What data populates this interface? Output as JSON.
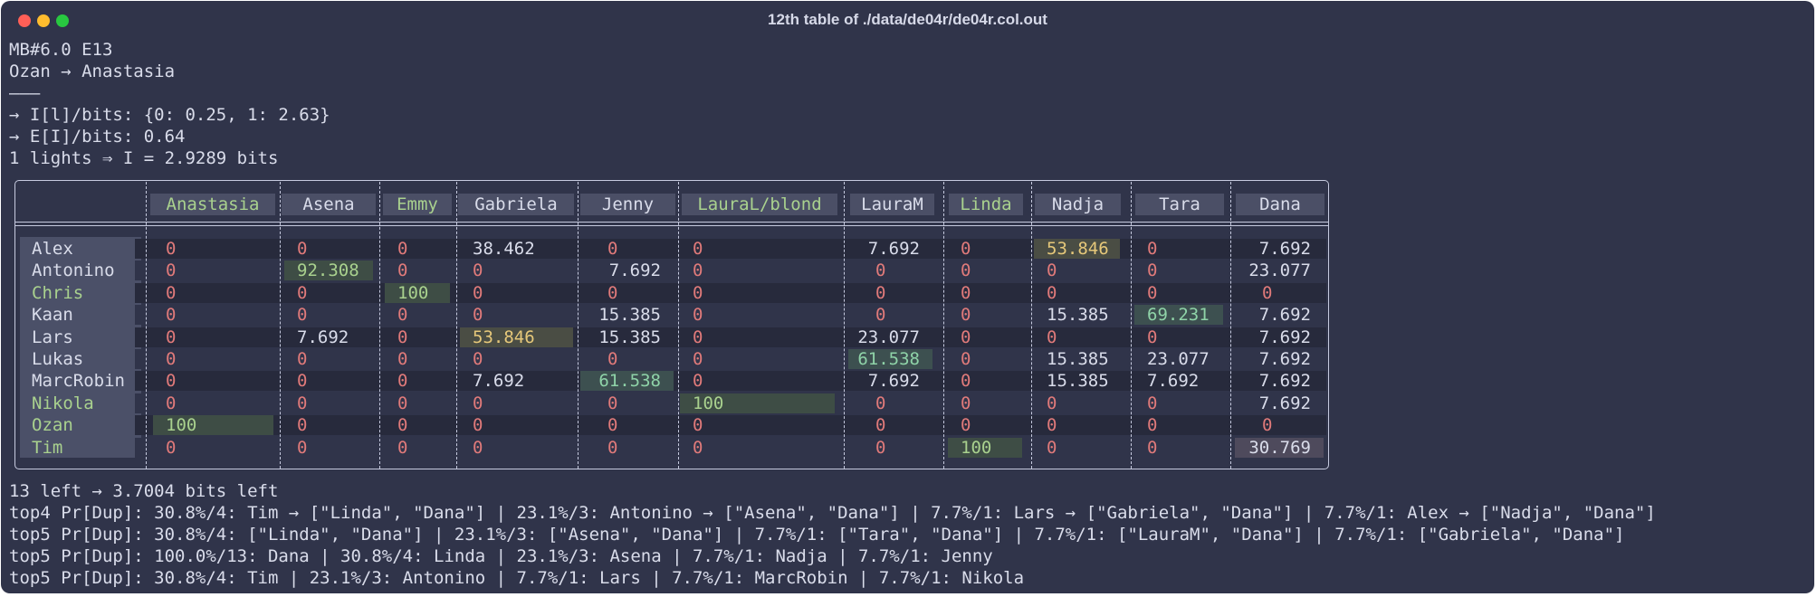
{
  "window": {
    "title": "12th table of ./data/de04r/de04r.col.out",
    "controls": {
      "close_color": "#ff5f57",
      "minimize_color": "#febc2e",
      "zoom_color": "#28c840"
    }
  },
  "header_lines": [
    "MB#6.0 E13",
    "Ozan → Anastasia",
    "———",
    "→ I[l]/bits: {0: 0.25, 1: 2.63}",
    "→ E[I]/bits: 0.64",
    "1 lights ⇒ I = 2.9289 bits"
  ],
  "table": {
    "columns": [
      {
        "label": "Anastasia",
        "color": "#a9d18e"
      },
      {
        "label": "Asena",
        "color": "#d9dcea"
      },
      {
        "label": "Emmy",
        "color": "#a9d18e"
      },
      {
        "label": "Gabriela",
        "color": "#d9dcea"
      },
      {
        "label": "Jenny",
        "color": "#d9dcea"
      },
      {
        "label": "LauraL/blond",
        "color": "#a9d18e"
      },
      {
        "label": "LauraM",
        "color": "#d9dcea"
      },
      {
        "label": "Linda",
        "color": "#a9d18e"
      },
      {
        "label": "Nadja",
        "color": "#d9dcea"
      },
      {
        "label": "Tara",
        "color": "#d9dcea"
      },
      {
        "label": "Dana",
        "color": "#d9dcea"
      }
    ],
    "rows": [
      {
        "name": "Alex",
        "name_color": "#d9dcea",
        "values": [
          "0",
          "0",
          "0",
          "38.462",
          "0",
          "0",
          "7.692",
          "0",
          "53.846",
          "0",
          "7.692"
        ]
      },
      {
        "name": "Antonino",
        "name_color": "#d9dcea",
        "values": [
          "0",
          "92.308",
          "0",
          "0",
          "7.692",
          "0",
          "0",
          "0",
          "0",
          "0",
          "23.077"
        ]
      },
      {
        "name": "Chris",
        "name_color": "#a9d18e",
        "values": [
          "0",
          "0",
          "100",
          "0",
          "0",
          "0",
          "0",
          "0",
          "0",
          "0",
          "0"
        ]
      },
      {
        "name": "Kaan",
        "name_color": "#d9dcea",
        "values": [
          "0",
          "0",
          "0",
          "0",
          "15.385",
          "0",
          "0",
          "0",
          "15.385",
          "69.231",
          "7.692"
        ]
      },
      {
        "name": "Lars",
        "name_color": "#d9dcea",
        "values": [
          "0",
          "7.692",
          "0",
          "53.846",
          "15.385",
          "0",
          "23.077",
          "0",
          "0",
          "0",
          "7.692"
        ]
      },
      {
        "name": "Lukas",
        "name_color": "#d9dcea",
        "values": [
          "0",
          "0",
          "0",
          "0",
          "0",
          "0",
          "61.538",
          "0",
          "15.385",
          "23.077",
          "7.692"
        ]
      },
      {
        "name": "MarcRobin",
        "name_color": "#d9dcea",
        "values": [
          "0",
          "0",
          "0",
          "7.692",
          "61.538",
          "0",
          "7.692",
          "0",
          "15.385",
          "7.692",
          "7.692"
        ]
      },
      {
        "name": "Nikola",
        "name_color": "#a9d18e",
        "values": [
          "0",
          "0",
          "0",
          "0",
          "0",
          "100",
          "0",
          "0",
          "0",
          "0",
          "7.692"
        ]
      },
      {
        "name": "Ozan",
        "name_color": "#a9d18e",
        "values": [
          "100",
          "0",
          "0",
          "0",
          "0",
          "0",
          "0",
          "0",
          "0",
          "0",
          "0"
        ]
      },
      {
        "name": "Tim",
        "name_color": "#a9d18e",
        "values": [
          "0",
          "0",
          "0",
          "0",
          "0",
          "0",
          "0",
          "100",
          "0",
          "0",
          "30.769"
        ]
      }
    ]
  },
  "footer_lines": [
    "13 left → 3.7004 bits left",
    "top4 Pr[Dup]: 30.8%/4: Tim → [\"Linda\", \"Dana\"] | 23.1%/3: Antonino → [\"Asena\", \"Dana\"] | 7.7%/1: Lars → [\"Gabriela\", \"Dana\"] | 7.7%/1: Alex → [\"Nadja\", \"Dana\"]",
    "top5 Pr[Dup]: 30.8%/4: [\"Linda\", \"Dana\"] | 23.1%/3: [\"Asena\", \"Dana\"] | 7.7%/1: [\"Tara\", \"Dana\"] | 7.7%/1: [\"LauraM\", \"Dana\"] | 7.7%/1: [\"Gabriela\", \"Dana\"]",
    "top5 Pr[Dup]: 100.0%/13: Dana | 30.8%/4: Linda | 23.1%/3: Asena | 7.7%/1: Nadja | 7.7%/1: Jenny",
    "top5 Pr[Dup]: 30.8%/4: Tim | 23.1%/3: Antonino | 7.7%/1: Lars | 7.7%/1: MarcRobin | 7.7%/1: Nikola"
  ],
  "colors": {
    "background": "#30344a",
    "zero_text": "#e07a7a",
    "value_text": "#d9dcea",
    "high_green_text": "#a9d18e",
    "high_green_bg": "#3e4d45",
    "mid_yellow_text": "#e6c87a",
    "mid_yellow_bg": "#4a4d44",
    "mid_teal_text": "#8fd3a8",
    "mid_teal_bg": "#3d5050",
    "dana_highlight_bg": "#4e4a5c"
  }
}
